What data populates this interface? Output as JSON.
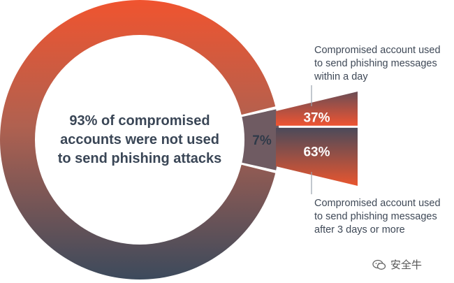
{
  "chart_data": {
    "type": "pie",
    "ring": {
      "slices": [
        {
          "label": "93% of compromised accounts were not used to send phishing attacks",
          "value": 93,
          "colors": [
            "#f0542f",
            "#3c4a5c"
          ]
        },
        {
          "label": "7%",
          "value": 7,
          "color": "#6f5b62"
        }
      ]
    },
    "breakdown": {
      "of": "7%",
      "slices": [
        {
          "label": "37%",
          "value": 37,
          "colors": [
            "#ee5432",
            "#8a5450"
          ]
        },
        {
          "label": "63%",
          "value": 63,
          "colors": [
            "#4b4a5a",
            "#e9562f"
          ]
        }
      ]
    },
    "center_text": [
      "93% of compromised",
      "accounts were not used",
      "to send phishing attacks"
    ],
    "notes": {
      "top": [
        "Compromised account used",
        "to send phishing messages",
        "within a day"
      ],
      "bottom": [
        "Compromised account used",
        "to send phishing messages",
        "after 3 days or more"
      ]
    }
  },
  "watermark": {
    "text": "安全牛"
  }
}
